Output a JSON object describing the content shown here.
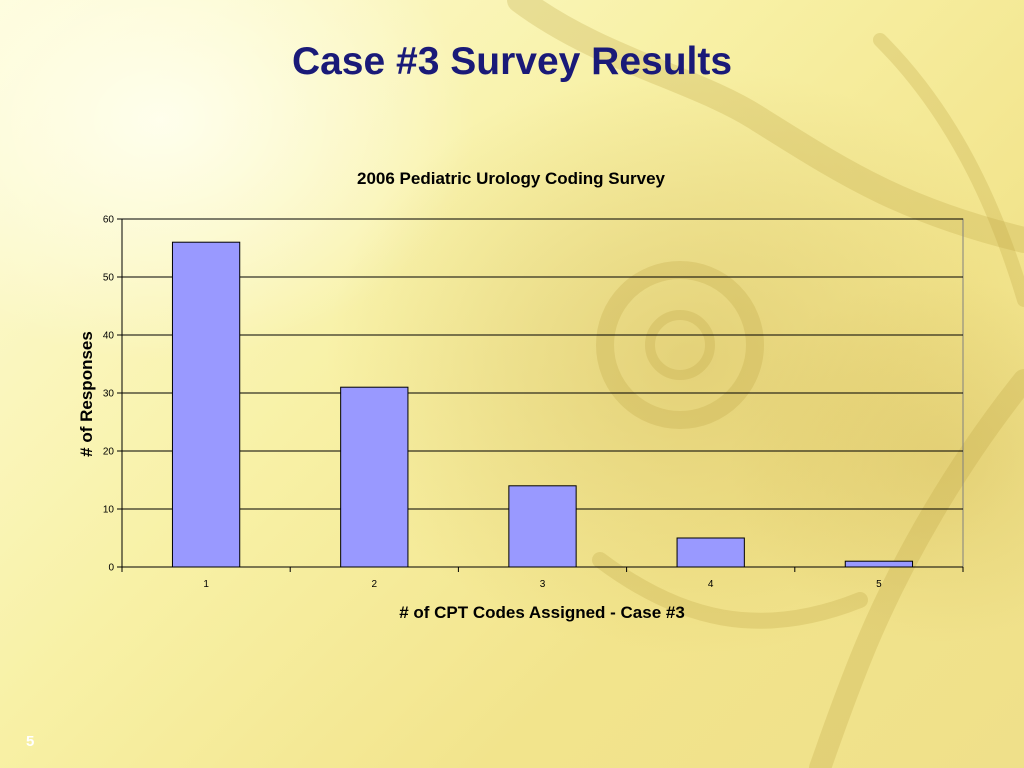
{
  "slide": {
    "title": "Case #3 Survey Results",
    "page_number": "5"
  },
  "colors": {
    "bar_fill": "#9999ff",
    "bar_stroke": "#000000",
    "title": "#1a1a78"
  },
  "chart_data": {
    "type": "bar",
    "title": "2006 Pediatric Urology Coding Survey",
    "xlabel": "# of CPT Codes Assigned - Case #3",
    "ylabel": "# of Responses",
    "categories": [
      "1",
      "2",
      "3",
      "4",
      "5"
    ],
    "values": [
      56,
      31,
      14,
      5,
      1
    ],
    "ylim": [
      0,
      60
    ],
    "yticks": [
      0,
      10,
      20,
      30,
      40,
      50,
      60
    ],
    "grid": true,
    "legend": "none"
  }
}
